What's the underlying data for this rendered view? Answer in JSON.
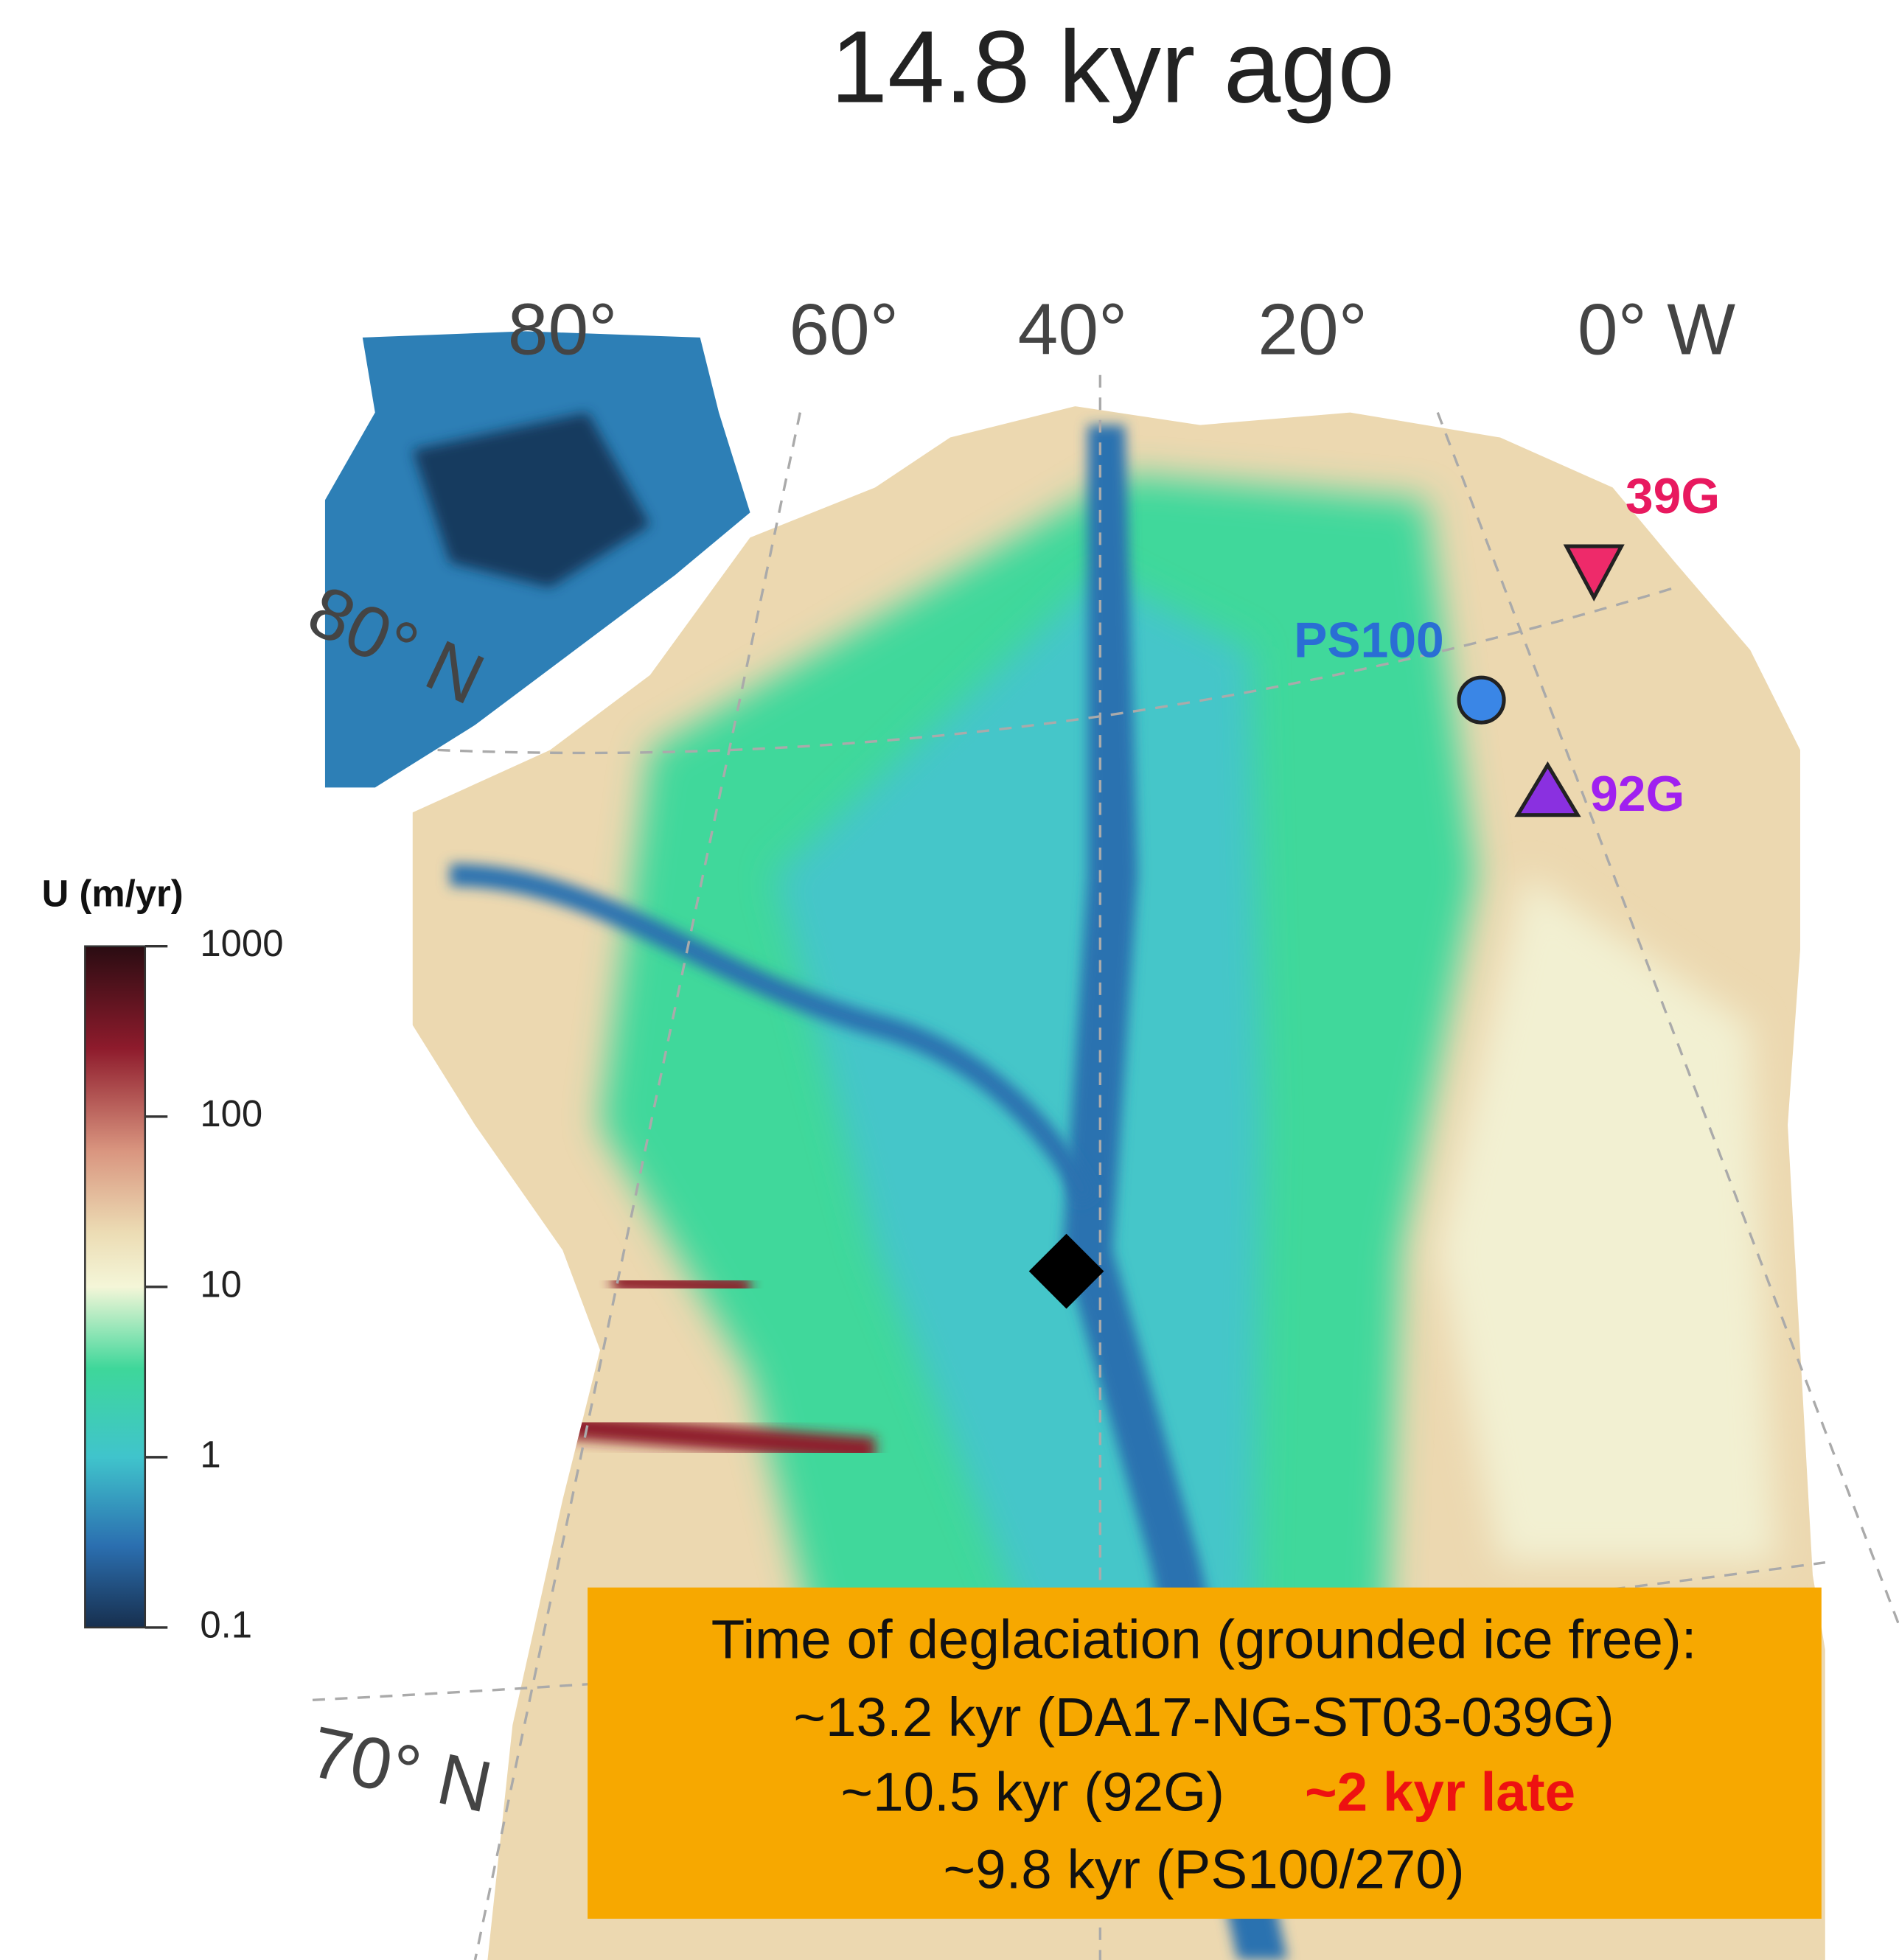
{
  "title": "14.8 kyr ago",
  "graticule": {
    "longitudes": [
      "80°",
      "60°",
      "40°",
      "20°",
      "0° W"
    ],
    "latitudes": [
      "80° N",
      "70° N"
    ]
  },
  "sites": {
    "s39g": "39G",
    "ps100": "PS100",
    "g92": "92G"
  },
  "colorbar": {
    "title": "U (m/yr)",
    "scale": "log",
    "lim": [
      0.1,
      1000
    ],
    "ticks": [
      0.1,
      1,
      10,
      100,
      1000
    ]
  },
  "info_box": {
    "lines": [
      "Time of deglaciation (grounded ice free):",
      "~13.2 kyr (DA17-NG-ST03-039G)",
      "~10.5 kyr (92G)",
      "~9.8 kyr (PS100/270)"
    ],
    "highlight": "~2 kyr late"
  }
}
